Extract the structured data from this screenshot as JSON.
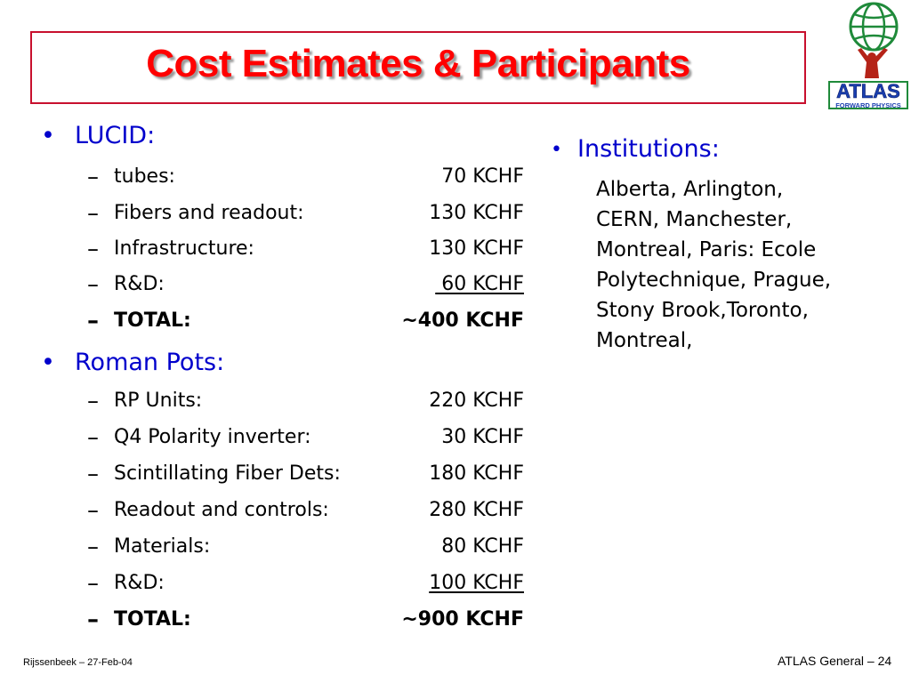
{
  "title": "Cost Estimates & Participants",
  "logo": {
    "text": "ATLAS",
    "banner_text": "FORWARD PHYSICS",
    "icon": "atlas-globe-figure-logo"
  },
  "colors": {
    "title": "#ff0000",
    "heading": "#0000cc",
    "border": "#c8102e"
  },
  "bullet_glyph": "•",
  "dash_glyph": "–",
  "lucid": {
    "label": "LUCID:",
    "items": [
      {
        "label": "tubes:",
        "value": "70 KCHF"
      },
      {
        "label": "Fibers and readout:",
        "value": "130 KCHF"
      },
      {
        "label": "Infrastructure:",
        "value": "130 KCHF"
      },
      {
        "label": "R&D:",
        "value": " 60 KCHF"
      },
      {
        "label": "TOTAL:",
        "value": "~400 KCHF"
      }
    ]
  },
  "roman_pots": {
    "label": "Roman Pots:",
    "items": [
      {
        "label": "RP Units:",
        "value": "220 KCHF"
      },
      {
        "label": "Q4 Polarity inverter:",
        "value": "30 KCHF"
      },
      {
        "label": "Scintillating Fiber Dets:",
        "value": "180 KCHF"
      },
      {
        "label": "Readout and controls:",
        "value": "280 KCHF"
      },
      {
        "label": "Materials:",
        "value": "80 KCHF"
      },
      {
        "label": "R&D:",
        "value": "100 KCHF"
      },
      {
        "label": "TOTAL:",
        "value": "~900 KCHF"
      }
    ]
  },
  "institutions": {
    "label": "Institutions:",
    "lines": [
      "Alberta, Arlington,",
      "CERN, Manchester,",
      "Montreal, Paris: Ecole",
      "Polytechnique, Prague,",
      "Stony Brook,Toronto,",
      "Montreal,"
    ]
  },
  "footer": {
    "left": "Rijssenbeek – 27-Feb-04",
    "right": "ATLAS General – 24"
  }
}
